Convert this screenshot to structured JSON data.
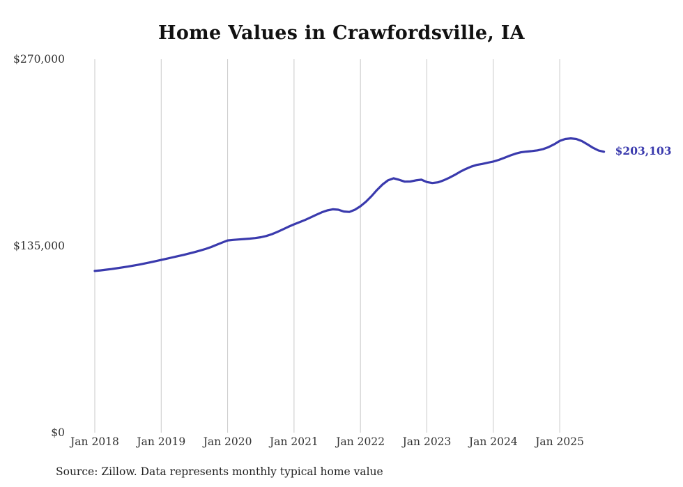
{
  "title": "Home Values in Crawfordsville, IA",
  "source_note": "Source: Zillow. Data represents monthly typical home value",
  "end_label": "$203,103",
  "colors": {
    "line": "#3a3aad",
    "grid": "#c9c9c9",
    "axis_text": "#333333",
    "end_label": "#3a3aad"
  },
  "chart_data": {
    "type": "line",
    "title": "Home Values in Crawfordsville, IA",
    "xlabel": "",
    "ylabel": "",
    "ylim": [
      0,
      270000
    ],
    "grid": "vertical",
    "legend": "none",
    "y_ticks": [
      {
        "label": "$0",
        "value": 0
      },
      {
        "label": "$135,000",
        "value": 135000
      },
      {
        "label": "$270,000",
        "value": 270000
      }
    ],
    "x_ticks": [
      {
        "label": "Jan 2018",
        "index": 0
      },
      {
        "label": "Jan 2019",
        "index": 12
      },
      {
        "label": "Jan 2020",
        "index": 24
      },
      {
        "label": "Jan 2021",
        "index": 36
      },
      {
        "label": "Jan 2022",
        "index": 48
      },
      {
        "label": "Jan 2023",
        "index": 60
      },
      {
        "label": "Jan 2024",
        "index": 72
      },
      {
        "label": "Jan 2025",
        "index": 84
      }
    ],
    "x": [
      "2018-01",
      "2018-02",
      "2018-03",
      "2018-04",
      "2018-05",
      "2018-06",
      "2018-07",
      "2018-08",
      "2018-09",
      "2018-10",
      "2018-11",
      "2018-12",
      "2019-01",
      "2019-02",
      "2019-03",
      "2019-04",
      "2019-05",
      "2019-06",
      "2019-07",
      "2019-08",
      "2019-09",
      "2019-10",
      "2019-11",
      "2019-12",
      "2020-01",
      "2020-02",
      "2020-03",
      "2020-04",
      "2020-05",
      "2020-06",
      "2020-07",
      "2020-08",
      "2020-09",
      "2020-10",
      "2020-11",
      "2020-12",
      "2021-01",
      "2021-02",
      "2021-03",
      "2021-04",
      "2021-05",
      "2021-06",
      "2021-07",
      "2021-08",
      "2021-09",
      "2021-10",
      "2021-11",
      "2021-12",
      "2022-01",
      "2022-02",
      "2022-03",
      "2022-04",
      "2022-05",
      "2022-06",
      "2022-07",
      "2022-08",
      "2022-09",
      "2022-10",
      "2022-11",
      "2022-12",
      "2023-01",
      "2023-02",
      "2023-03",
      "2023-04",
      "2023-05",
      "2023-06",
      "2023-07",
      "2023-08",
      "2023-09",
      "2023-10",
      "2023-11",
      "2023-12",
      "2024-01",
      "2024-02",
      "2024-03",
      "2024-04",
      "2024-05",
      "2024-06",
      "2024-07",
      "2024-08",
      "2024-09",
      "2024-10",
      "2024-11",
      "2024-12",
      "2025-01",
      "2025-02",
      "2025-03",
      "2025-04",
      "2025-05",
      "2025-06",
      "2025-07",
      "2025-08",
      "2025-09"
    ],
    "values": [
      116900,
      117300,
      117800,
      118300,
      118900,
      119500,
      120100,
      120800,
      121500,
      122300,
      123100,
      124000,
      124900,
      125800,
      126700,
      127600,
      128500,
      129500,
      130500,
      131600,
      132800,
      134200,
      135800,
      137400,
      139000,
      139400,
      139700,
      140000,
      140300,
      140700,
      141300,
      142200,
      143500,
      145200,
      147000,
      148900,
      150600,
      152200,
      153800,
      155600,
      157500,
      159300,
      160700,
      161500,
      161200,
      159900,
      159600,
      161200,
      163700,
      167000,
      171000,
      175500,
      179500,
      182500,
      183900,
      182800,
      181500,
      181600,
      182400,
      182900,
      181200,
      180500,
      181000,
      182400,
      184200,
      186300,
      188600,
      190600,
      192300,
      193600,
      194300,
      195200,
      196000,
      197200,
      198700,
      200300,
      201700,
      202700,
      203200,
      203600,
      204100,
      205000,
      206500,
      208500,
      210900,
      212300,
      212800,
      212300,
      210800,
      208500,
      206000,
      204000,
      203103
    ]
  }
}
